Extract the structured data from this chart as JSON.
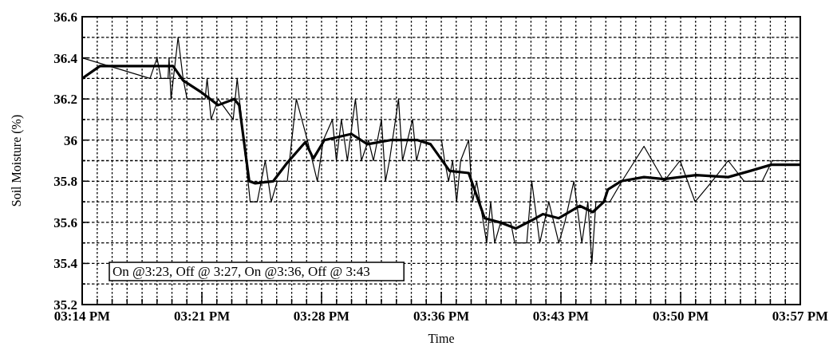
{
  "chart_data": {
    "type": "line",
    "xlabel": "Time",
    "ylabel": "Soil Moisture (%)",
    "annotations": [
      "On @3:23, Off @ 3:27, On @3:36, Off @ 3:43"
    ],
    "xlim": [
      15.2333,
      15.95
    ],
    "ylim": [
      35.2,
      36.6
    ],
    "xticks": [
      {
        "value": 15.2333,
        "label": "03:14 PM"
      },
      {
        "value": 15.2483,
        "label": null
      },
      {
        "value": 15.2632,
        "label": null
      },
      {
        "value": 15.2781,
        "label": null
      },
      {
        "value": 15.2931,
        "label": null
      },
      {
        "value": 15.308,
        "label": null
      },
      {
        "value": 15.3229,
        "label": null
      },
      {
        "value": 15.3378,
        "label": null
      },
      {
        "value": 15.3528,
        "label": "03:21 PM"
      },
      {
        "value": 15.3677,
        "label": null
      },
      {
        "value": 15.3826,
        "label": null
      },
      {
        "value": 15.3976,
        "label": null
      },
      {
        "value": 15.4125,
        "label": null
      },
      {
        "value": 15.4274,
        "label": null
      },
      {
        "value": 15.4424,
        "label": null
      },
      {
        "value": 15.4573,
        "label": null
      },
      {
        "value": 15.4722,
        "label": "03:28 PM"
      },
      {
        "value": 15.4872,
        "label": null
      },
      {
        "value": 15.5021,
        "label": null
      },
      {
        "value": 15.517,
        "label": null
      },
      {
        "value": 15.5319,
        "label": null
      },
      {
        "value": 15.5469,
        "label": null
      },
      {
        "value": 15.5618,
        "label": null
      },
      {
        "value": 15.5767,
        "label": null
      },
      {
        "value": 15.5917,
        "label": "03:36 PM"
      },
      {
        "value": 15.6066,
        "label": null
      },
      {
        "value": 15.6215,
        "label": null
      },
      {
        "value": 15.6365,
        "label": null
      },
      {
        "value": 15.6514,
        "label": null
      },
      {
        "value": 15.6663,
        "label": null
      },
      {
        "value": 15.6812,
        "label": null
      },
      {
        "value": 15.6962,
        "label": null
      },
      {
        "value": 15.7111,
        "label": "03:43 PM"
      },
      {
        "value": 15.726,
        "label": null
      },
      {
        "value": 15.741,
        "label": null
      },
      {
        "value": 15.7559,
        "label": null
      },
      {
        "value": 15.7708,
        "label": null
      },
      {
        "value": 15.7858,
        "label": null
      },
      {
        "value": 15.8007,
        "label": null
      },
      {
        "value": 15.8156,
        "label": null
      },
      {
        "value": 15.8306,
        "label": "03:50 PM"
      },
      {
        "value": 15.8455,
        "label": null
      },
      {
        "value": 15.8604,
        "label": null
      },
      {
        "value": 15.8753,
        "label": null
      },
      {
        "value": 15.8903,
        "label": null
      },
      {
        "value": 15.9052,
        "label": null
      },
      {
        "value": 15.9201,
        "label": null
      },
      {
        "value": 15.9351,
        "label": null
      },
      {
        "value": 15.95,
        "label": "03:57 PM"
      }
    ],
    "yticks": [
      35.2,
      {
        "value": 35.3,
        "label": null
      },
      35.4,
      {
        "value": 35.5,
        "label": null
      },
      35.6,
      {
        "value": 35.7,
        "label": null
      },
      35.8,
      {
        "value": 35.9,
        "label": null
      },
      {
        "value": 36,
        "label": "36"
      },
      {
        "value": 36.1,
        "label": null
      },
      36.2,
      {
        "value": 36.3,
        "label": null
      },
      36.4,
      {
        "value": 36.5,
        "label": null
      },
      36.6
    ],
    "grid": true,
    "marker": "none",
    "line_style": "solid",
    "series": [
      {
        "color": "#000000",
        "x": [
          15.2333,
          15.301,
          15.308,
          15.312,
          15.319,
          15.32,
          15.322,
          15.329,
          15.334,
          15.338,
          15.356,
          15.358,
          15.362,
          15.369,
          15.384,
          15.388,
          15.401,
          15.408,
          15.416,
          15.422,
          15.428,
          15.438,
          15.447,
          15.458,
          15.468,
          15.474,
          15.483,
          15.487,
          15.492,
          15.498,
          15.506,
          15.512,
          15.519,
          15.524,
          15.532,
          15.536,
          15.54,
          15.549,
          15.553,
          15.563,
          15.567,
          15.572,
          15.592,
          15.595,
          15.599,
          15.603,
          15.607,
          15.611,
          15.619,
          15.623,
          15.627,
          15.637,
          15.641,
          15.645,
          15.651,
          15.661,
          15.665,
          15.677,
          15.682,
          15.69,
          15.699,
          15.709,
          15.715,
          15.724,
          15.732,
          15.738,
          15.742,
          15.746,
          15.76,
          15.772,
          15.794,
          15.814,
          15.83,
          15.845,
          15.862,
          15.878,
          15.894,
          15.912,
          15.922,
          15.95
        ],
        "values": [
          36.4,
          36.3,
          36.4,
          36.3,
          36.3,
          36.4,
          36.2,
          36.5,
          36.3,
          36.2,
          36.2,
          36.3,
          36.1,
          36.2,
          36.1,
          36.3,
          35.7,
          35.7,
          35.9,
          35.7,
          35.8,
          35.8,
          36.2,
          36.0,
          35.8,
          36.0,
          36.1,
          35.9,
          36.1,
          35.9,
          36.2,
          35.9,
          36.0,
          35.9,
          36.1,
          35.8,
          35.9,
          36.2,
          35.9,
          36.1,
          35.9,
          36.0,
          36.0,
          35.9,
          35.8,
          35.9,
          35.7,
          35.9,
          36.0,
          35.7,
          35.8,
          35.5,
          35.7,
          35.5,
          35.6,
          35.6,
          35.5,
          35.5,
          35.8,
          35.5,
          35.7,
          35.5,
          35.6,
          35.8,
          35.5,
          35.7,
          35.4,
          35.7,
          35.7,
          35.8,
          35.97,
          35.8,
          35.9,
          35.7,
          35.8,
          35.9,
          35.8,
          35.8,
          35.9,
          35.9
        ]
      },
      {
        "color": "#000000",
        "x": [
          15.2333,
          15.251,
          15.315,
          15.324,
          15.334,
          15.353,
          15.369,
          15.385,
          15.39,
          15.4,
          15.406,
          15.424,
          15.438,
          15.456,
          15.464,
          15.475,
          15.502,
          15.518,
          15.541,
          15.568,
          15.581,
          15.6,
          15.619,
          15.635,
          15.65,
          15.666,
          15.682,
          15.693,
          15.709,
          15.73,
          15.743,
          15.754,
          15.758,
          15.771,
          15.794,
          15.814,
          15.846,
          15.878,
          15.9,
          15.921,
          15.95
        ],
        "values": [
          36.3,
          36.36,
          36.36,
          36.36,
          36.29,
          36.23,
          36.17,
          36.2,
          36.17,
          35.8,
          35.79,
          35.8,
          35.89,
          35.99,
          35.91,
          36.0,
          36.03,
          35.98,
          36.0,
          36.0,
          35.98,
          35.85,
          35.84,
          35.62,
          35.6,
          35.57,
          35.61,
          35.64,
          35.62,
          35.68,
          35.65,
          35.7,
          35.76,
          35.8,
          35.82,
          35.81,
          35.83,
          35.82,
          35.85,
          35.88,
          35.88
        ]
      }
    ]
  }
}
